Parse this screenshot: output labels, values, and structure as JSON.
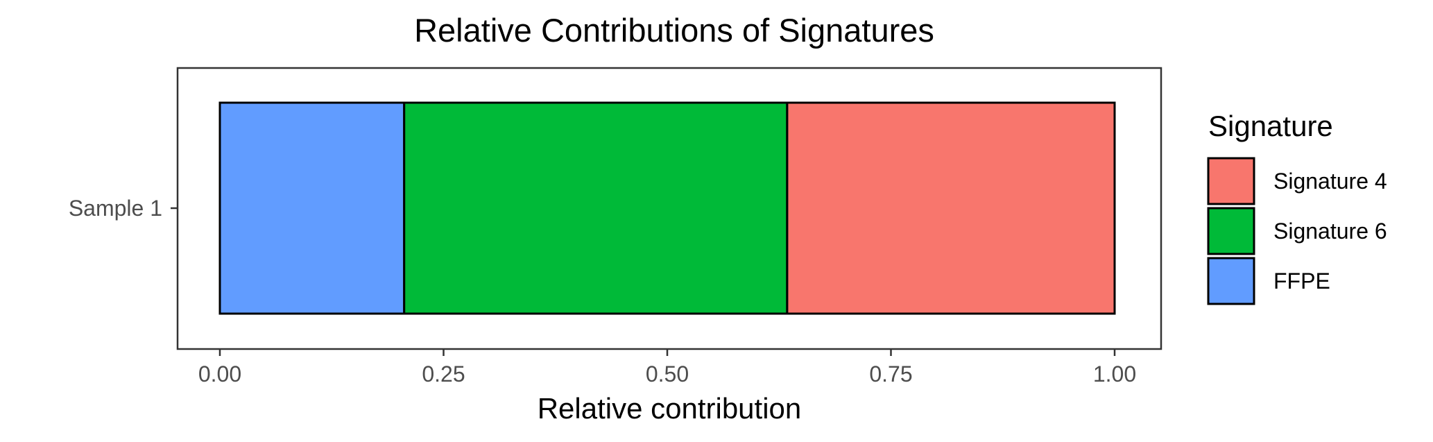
{
  "chart_data": {
    "type": "bar",
    "orientation": "horizontal",
    "stacked": true,
    "title": "Relative Contributions of Signatures",
    "xlabel": "Relative contribution",
    "ylabel": "",
    "xlim": [
      0,
      1
    ],
    "x_ticks": [
      "0.00",
      "0.25",
      "0.50",
      "0.75",
      "1.00"
    ],
    "categories": [
      "Sample 1"
    ],
    "series": [
      {
        "name": "FFPE",
        "values": [
          0.206
        ],
        "color": "#619CFF"
      },
      {
        "name": "Signature 6",
        "values": [
          0.428
        ],
        "color": "#00BA38"
      },
      {
        "name": "Signature 4",
        "values": [
          0.366
        ],
        "color": "#F8766D"
      }
    ],
    "grid": false,
    "legend": {
      "title": "Signature",
      "placement": "right",
      "entries": [
        "Signature 4",
        "Signature 6",
        "FFPE"
      ]
    }
  }
}
